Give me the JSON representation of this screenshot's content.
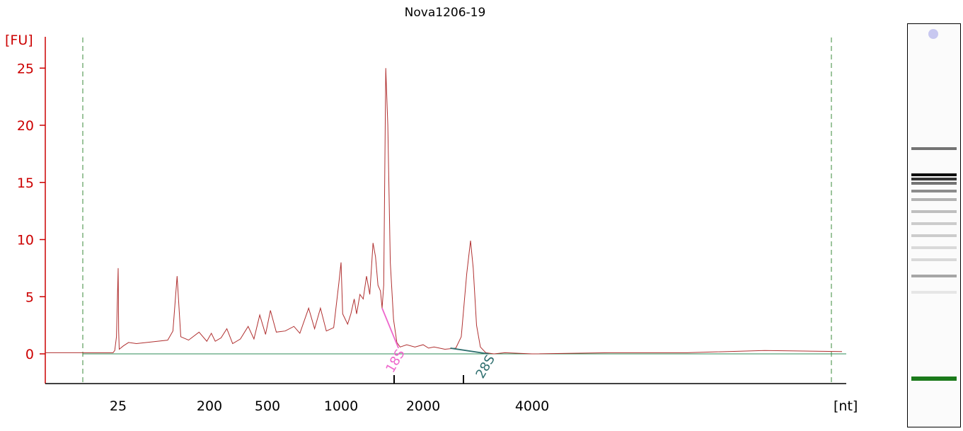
{
  "chart_data": {
    "type": "line",
    "title": "Nova1206-19",
    "ylabel": "[FU]",
    "xlabel": "[nt]",
    "ylim": [
      -2.5,
      27
    ],
    "yticks": [
      0,
      5,
      10,
      15,
      20,
      25
    ],
    "x_scale": "nonlinear (electrophoresis migration)",
    "xtick_labels": [
      "25",
      "200",
      "500",
      "1000",
      "2000",
      "4000"
    ],
    "xtick_values": [
      25,
      200,
      500,
      1000,
      2000,
      4000
    ],
    "grid": false,
    "series_color": "#b03030",
    "baseline_color": "#2e8b57",
    "marker_color": "#1b7a1b",
    "trace": [
      [
        20,
        0.1
      ],
      [
        22,
        0.1
      ],
      [
        23,
        0.3
      ],
      [
        24,
        1.5
      ],
      [
        25,
        7.5
      ],
      [
        26,
        2.0
      ],
      [
        27,
        0.4
      ],
      [
        35,
        0.7
      ],
      [
        45,
        1.0
      ],
      [
        60,
        0.9
      ],
      [
        80,
        1.0
      ],
      [
        100,
        1.1
      ],
      [
        120,
        1.2
      ],
      [
        130,
        2.0
      ],
      [
        138,
        6.8
      ],
      [
        145,
        1.5
      ],
      [
        160,
        1.2
      ],
      [
        180,
        1.9
      ],
      [
        195,
        1.1
      ],
      [
        210,
        1.8
      ],
      [
        230,
        1.1
      ],
      [
        260,
        1.4
      ],
      [
        290,
        2.2
      ],
      [
        320,
        0.9
      ],
      [
        360,
        1.3
      ],
      [
        400,
        2.4
      ],
      [
        430,
        1.3
      ],
      [
        460,
        3.4
      ],
      [
        490,
        1.7
      ],
      [
        520,
        3.8
      ],
      [
        560,
        1.9
      ],
      [
        620,
        2.0
      ],
      [
        680,
        2.4
      ],
      [
        720,
        1.8
      ],
      [
        780,
        4.0
      ],
      [
        820,
        2.2
      ],
      [
        860,
        4.0
      ],
      [
        900,
        2.0
      ],
      [
        950,
        2.3
      ],
      [
        985,
        6.2
      ],
      [
        1000,
        8.0
      ],
      [
        1020,
        3.5
      ],
      [
        1080,
        2.6
      ],
      [
        1120,
        3.5
      ],
      [
        1160,
        4.8
      ],
      [
        1190,
        3.5
      ],
      [
        1230,
        5.2
      ],
      [
        1270,
        4.8
      ],
      [
        1310,
        6.8
      ],
      [
        1350,
        5.2
      ],
      [
        1390,
        9.7
      ],
      [
        1420,
        8.5
      ],
      [
        1450,
        6.0
      ],
      [
        1480,
        5.5
      ],
      [
        1500,
        4.0
      ],
      [
        1520,
        6.0
      ],
      [
        1545,
        25.0
      ],
      [
        1570,
        20.0
      ],
      [
        1600,
        8.0
      ],
      [
        1640,
        3.0
      ],
      [
        1680,
        1.0
      ],
      [
        1720,
        0.6
      ],
      [
        1800,
        0.8
      ],
      [
        1900,
        0.6
      ],
      [
        2000,
        0.8
      ],
      [
        2100,
        0.5
      ],
      [
        2200,
        0.6
      ],
      [
        2400,
        0.4
      ],
      [
        2600,
        0.5
      ],
      [
        2700,
        1.5
      ],
      [
        2800,
        7.0
      ],
      [
        2870,
        9.9
      ],
      [
        2920,
        7.5
      ],
      [
        2980,
        2.5
      ],
      [
        3050,
        0.6
      ],
      [
        3150,
        0.1
      ],
      [
        3300,
        0.0
      ],
      [
        3500,
        0.1
      ],
      [
        4000,
        0.0
      ],
      [
        5000,
        0.1
      ],
      [
        6000,
        0.1
      ],
      [
        7000,
        0.3
      ],
      [
        8000,
        0.2
      ]
    ],
    "annotations": [
      {
        "label": "18S",
        "color": "#ee66cc",
        "from": [
          1500,
          4.0
        ],
        "to": [
          1700,
          0.5
        ]
      },
      {
        "label": "28S",
        "color": "#2f6f6f",
        "from": [
          2500,
          0.5
        ],
        "to": [
          3200,
          0.0
        ]
      }
    ]
  },
  "gel_lane": {
    "bands": [
      {
        "pos": 0.305,
        "intensity": 0.55
      },
      {
        "pos": 0.37,
        "intensity": 0.95
      },
      {
        "pos": 0.38,
        "intensity": 0.8
      },
      {
        "pos": 0.39,
        "intensity": 0.55
      },
      {
        "pos": 0.41,
        "intensity": 0.45
      },
      {
        "pos": 0.43,
        "intensity": 0.3
      },
      {
        "pos": 0.46,
        "intensity": 0.25
      },
      {
        "pos": 0.49,
        "intensity": 0.2
      },
      {
        "pos": 0.52,
        "intensity": 0.2
      },
      {
        "pos": 0.55,
        "intensity": 0.15
      },
      {
        "pos": 0.58,
        "intensity": 0.15
      },
      {
        "pos": 0.62,
        "intensity": 0.35
      },
      {
        "pos": 0.66,
        "intensity": 0.1
      }
    ],
    "marker_color": "#1b7a1b",
    "dot_color": "#c8c8f0"
  }
}
